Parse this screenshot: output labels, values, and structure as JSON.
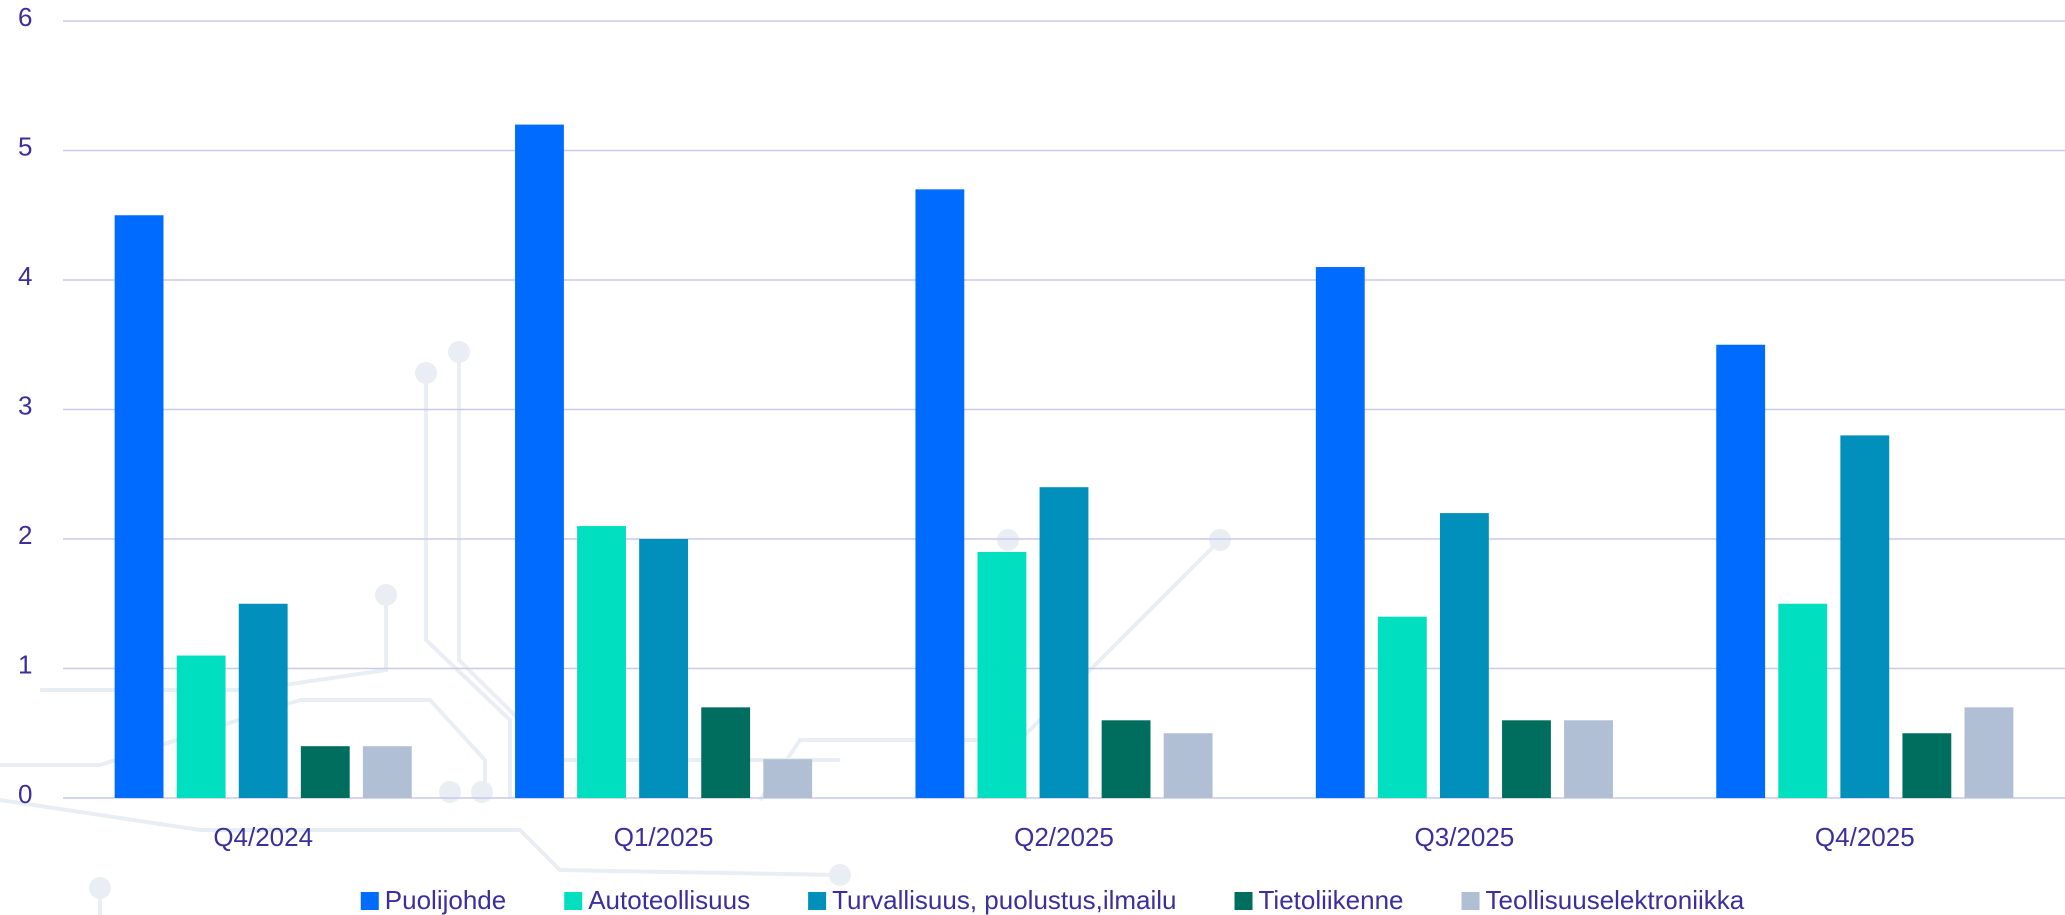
{
  "chart_data": {
    "type": "bar",
    "categories": [
      "Q4/2024",
      "Q1/2025",
      "Q2/2025",
      "Q3/2025",
      "Q4/2025"
    ],
    "series": [
      {
        "name": "Puolijohde",
        "color": "#006bff",
        "values": [
          4.5,
          5.2,
          4.7,
          4.1,
          3.5
        ]
      },
      {
        "name": "Autoteollisuus",
        "color": "#00dfc0",
        "values": [
          1.1,
          2.1,
          1.9,
          1.4,
          1.5
        ]
      },
      {
        "name": "Turvallisuus, puolustus,ilmailu",
        "color": "#0090bb",
        "values": [
          1.5,
          2.0,
          2.4,
          2.2,
          2.8
        ]
      },
      {
        "name": "Tietoliikenne",
        "color": "#006e5f",
        "values": [
          0.4,
          0.7,
          0.6,
          0.6,
          0.5
        ]
      },
      {
        "name": "Teollisuuselektroniikka",
        "color": "#b1bfd4",
        "values": [
          0.4,
          0.3,
          0.5,
          0.6,
          0.7
        ]
      }
    ],
    "ylim": [
      0,
      6
    ],
    "yticks": [
      0,
      1,
      2,
      3,
      4,
      5,
      6
    ],
    "grid": true,
    "legend": "bottom"
  }
}
